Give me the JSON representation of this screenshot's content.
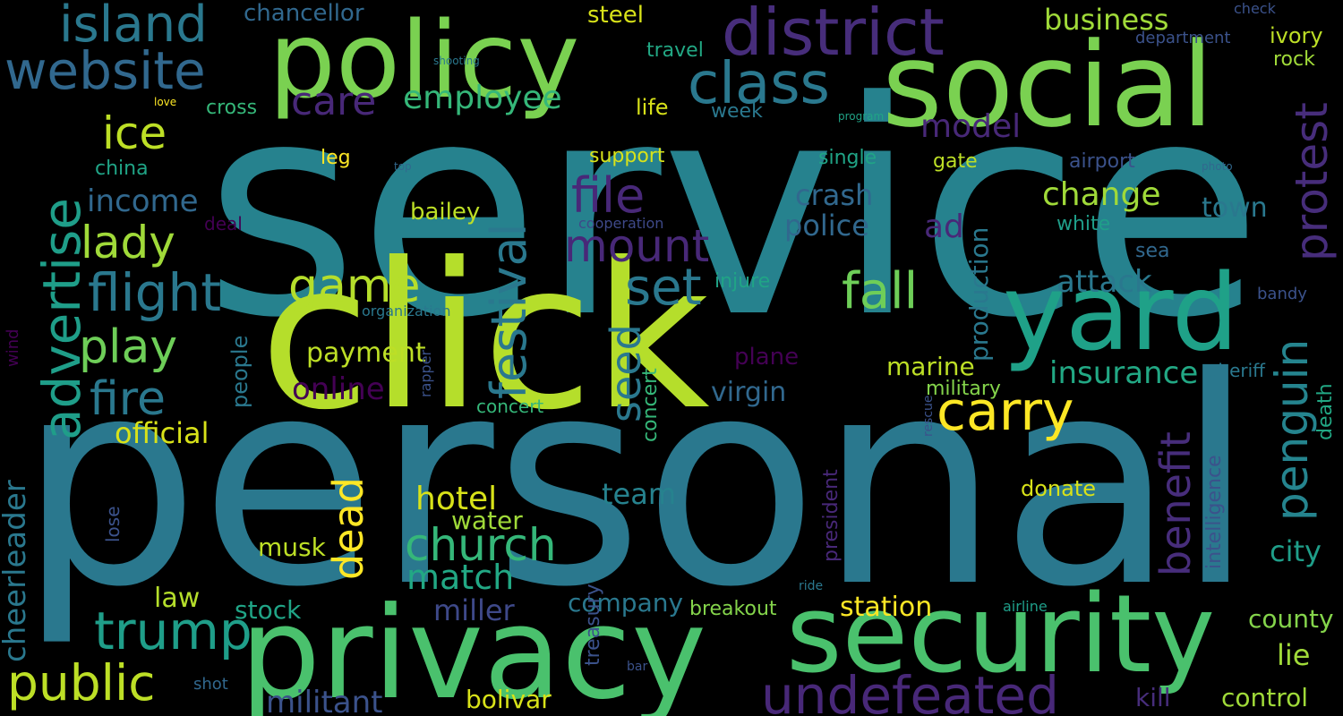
{
  "words": [
    {
      "text": "service",
      "color": "#26828e"
    },
    {
      "text": "personal",
      "color": "#2a788e"
    },
    {
      "text": "click",
      "color": "#b5de2b"
    },
    {
      "text": "privacy",
      "color": "#4ac16d"
    },
    {
      "text": "security",
      "color": "#4ac16d"
    },
    {
      "text": "social",
      "color": "#7ad151"
    },
    {
      "text": "policy",
      "color": "#7ad151"
    },
    {
      "text": "district",
      "color": "#472d7b"
    },
    {
      "text": "yard",
      "color": "#1fa188"
    },
    {
      "text": "class",
      "color": "#2a788e"
    },
    {
      "text": "website",
      "color": "#31688e"
    },
    {
      "text": "island",
      "color": "#2a788e"
    },
    {
      "text": "advertise",
      "color": "#1f9e89"
    },
    {
      "text": "undefeated",
      "color": "#482878"
    },
    {
      "text": "festival",
      "color": "#2a788e"
    },
    {
      "text": "flight",
      "color": "#2a788e"
    },
    {
      "text": "trump",
      "color": "#1f9e89"
    },
    {
      "text": "public",
      "color": "#bddf26"
    },
    {
      "text": "carry",
      "color": "#fde725"
    },
    {
      "text": "church",
      "color": "#35b779"
    },
    {
      "text": "fall",
      "color": "#6ece58"
    },
    {
      "text": "set",
      "color": "#2a788e"
    },
    {
      "text": "penguin",
      "color": "#25848e"
    },
    {
      "text": "protest",
      "color": "#472d7b"
    },
    {
      "text": "mount",
      "color": "#482878"
    },
    {
      "text": "file",
      "color": "#482878"
    },
    {
      "text": "benefit",
      "color": "#472d7b"
    },
    {
      "text": "game",
      "color": "#b5de2b"
    },
    {
      "text": "play",
      "color": "#6ece58"
    },
    {
      "text": "fire",
      "color": "#2a788e"
    },
    {
      "text": "lady",
      "color": "#a0da39"
    },
    {
      "text": "ice",
      "color": "#bddf26"
    },
    {
      "text": "care",
      "color": "#482878"
    },
    {
      "text": "employee",
      "color": "#35b779"
    },
    {
      "text": "dead",
      "color": "#fde725"
    },
    {
      "text": "seed",
      "color": "#2a788e"
    },
    {
      "text": "online",
      "color": "#440154"
    },
    {
      "text": "cheerleader",
      "color": "#2a788e"
    },
    {
      "text": "change",
      "color": "#a0da39"
    },
    {
      "text": "insurance",
      "color": "#22a884"
    },
    {
      "text": "match",
      "color": "#22a884"
    },
    {
      "text": "hotel",
      "color": "#d8e219"
    },
    {
      "text": "militant",
      "color": "#3b528b"
    },
    {
      "text": "income",
      "color": "#31688e"
    },
    {
      "text": "production",
      "color": "#2a788e"
    },
    {
      "text": "model",
      "color": "#482878"
    },
    {
      "text": "attack",
      "color": "#2a788e"
    },
    {
      "text": "crash",
      "color": "#31688e"
    },
    {
      "text": "police",
      "color": "#31688e"
    },
    {
      "text": "business",
      "color": "#a0da39"
    },
    {
      "text": "chancellor",
      "color": "#31688e"
    },
    {
      "text": "virgin",
      "color": "#31688e"
    },
    {
      "text": "marine",
      "color": "#bddf26"
    },
    {
      "text": "payment",
      "color": "#bddf26"
    },
    {
      "text": "official",
      "color": "#d8e219"
    },
    {
      "text": "team",
      "color": "#26828e"
    },
    {
      "text": "water",
      "color": "#a0da39"
    },
    {
      "text": "musk",
      "color": "#bddf26"
    },
    {
      "text": "station",
      "color": "#fde725"
    },
    {
      "text": "company",
      "color": "#2a788e"
    },
    {
      "text": "miller",
      "color": "#3e4989"
    },
    {
      "text": "bolivar",
      "color": "#d8e219"
    },
    {
      "text": "law",
      "color": "#b5de2b"
    },
    {
      "text": "stock",
      "color": "#20a486"
    },
    {
      "text": "ad",
      "color": "#482878"
    },
    {
      "text": "town",
      "color": "#2a788e"
    },
    {
      "text": "city",
      "color": "#1f9e89"
    },
    {
      "text": "lie",
      "color": "#a0da39"
    },
    {
      "text": "county",
      "color": "#84d44b"
    },
    {
      "text": "control",
      "color": "#a0da39"
    },
    {
      "text": "kill",
      "color": "#472d7b"
    },
    {
      "text": "bailey",
      "color": "#bddf26"
    },
    {
      "text": "donate",
      "color": "#d8e219"
    },
    {
      "text": "steel",
      "color": "#d8e219"
    },
    {
      "text": "ivory",
      "color": "#bddf26"
    },
    {
      "text": "rock",
      "color": "#a0da39"
    },
    {
      "text": "travel",
      "color": "#22a884"
    },
    {
      "text": "life",
      "color": "#d8e219"
    },
    {
      "text": "week",
      "color": "#2a788e"
    },
    {
      "text": "cross",
      "color": "#35b779"
    },
    {
      "text": "leg",
      "color": "#fde725"
    },
    {
      "text": "support",
      "color": "#d8e219"
    },
    {
      "text": "single",
      "color": "#20a486"
    },
    {
      "text": "gate",
      "color": "#bddf26"
    },
    {
      "text": "airport",
      "color": "#3b528b"
    },
    {
      "text": "china",
      "color": "#20a486"
    },
    {
      "text": "deal",
      "color": "#440154"
    },
    {
      "text": "cooperation",
      "color": "#3e4989"
    },
    {
      "text": "white",
      "color": "#1f9e89"
    },
    {
      "text": "sea",
      "color": "#31688e"
    },
    {
      "text": "injure",
      "color": "#20a486"
    },
    {
      "text": "plane",
      "color": "#440154"
    },
    {
      "text": "people",
      "color": "#2a788e"
    },
    {
      "text": "concert",
      "color": "#35b779"
    },
    {
      "text": "military",
      "color": "#84d44b"
    },
    {
      "text": "sheriff",
      "color": "#2a788e"
    },
    {
      "text": "bandy",
      "color": "#3b528b"
    },
    {
      "text": "death",
      "color": "#22a884"
    },
    {
      "text": "intelligence",
      "color": "#3b528b"
    },
    {
      "text": "president",
      "color": "#482878"
    },
    {
      "text": "breakout",
      "color": "#84d44b"
    },
    {
      "text": "airline",
      "color": "#1f9e89"
    },
    {
      "text": "treasury",
      "color": "#3b528b"
    },
    {
      "text": "bar",
      "color": "#3b528b"
    },
    {
      "text": "shot",
      "color": "#31688e"
    },
    {
      "text": "lose",
      "color": "#3b528b"
    },
    {
      "text": "wind",
      "color": "#440154"
    },
    {
      "text": "organization",
      "color": "#2a788e"
    },
    {
      "text": "rapper",
      "color": "#3b528b"
    },
    {
      "text": "rescue",
      "color": "#3b528b"
    },
    {
      "text": "ride",
      "color": "#2a788e"
    },
    {
      "text": "check",
      "color": "#3b528b"
    },
    {
      "text": "department",
      "color": "#3b528b"
    },
    {
      "text": "shooting",
      "color": "#2a788e"
    },
    {
      "text": "love",
      "color": "#fde725"
    },
    {
      "text": "program",
      "color": "#20a486"
    },
    {
      "text": "top",
      "color": "#31688e"
    },
    {
      "text": "photo",
      "color": "#31688e"
    },
    {
      "text": "feature",
      "color": "#2a788e"
    }
  ]
}
